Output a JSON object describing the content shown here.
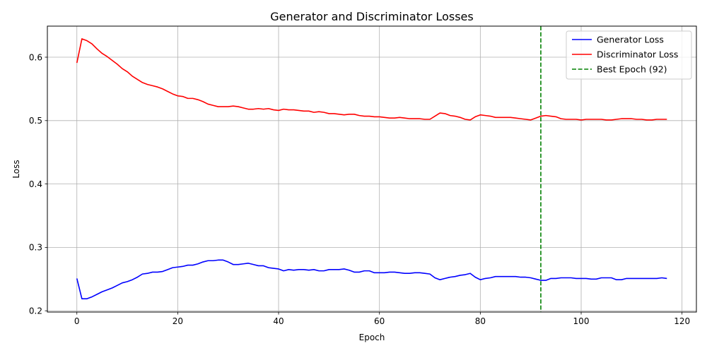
{
  "chart_data": {
    "type": "line",
    "title": "Generator and Discriminator Losses",
    "xlabel": "Epoch",
    "ylabel": "Loss",
    "xlim": [
      -5.85,
      122.85
    ],
    "ylim": [
      0.198,
      0.649
    ],
    "xticks": [
      0,
      20,
      40,
      60,
      80,
      100,
      120
    ],
    "yticks": [
      0.2,
      0.3,
      0.4,
      0.5,
      0.6
    ],
    "xtick_labels": [
      "0",
      "20",
      "40",
      "60",
      "80",
      "100",
      "120"
    ],
    "ytick_labels": [
      "0.2",
      "0.3",
      "0.4",
      "0.5",
      "0.6"
    ],
    "grid": true,
    "legend_position": "top-right",
    "series": [
      {
        "name": "Generator Loss",
        "color": "#0000ff",
        "style": "solid",
        "x_start": 0,
        "values": [
          0.251,
          0.219,
          0.219,
          0.222,
          0.226,
          0.23,
          0.233,
          0.236,
          0.24,
          0.244,
          0.246,
          0.249,
          0.253,
          0.258,
          0.259,
          0.261,
          0.261,
          0.262,
          0.265,
          0.268,
          0.269,
          0.27,
          0.272,
          0.272,
          0.274,
          0.277,
          0.279,
          0.279,
          0.28,
          0.28,
          0.277,
          0.273,
          0.273,
          0.274,
          0.275,
          0.273,
          0.271,
          0.271,
          0.268,
          0.267,
          0.266,
          0.263,
          0.265,
          0.264,
          0.265,
          0.265,
          0.264,
          0.265,
          0.263,
          0.263,
          0.265,
          0.265,
          0.265,
          0.266,
          0.264,
          0.261,
          0.261,
          0.263,
          0.263,
          0.26,
          0.26,
          0.26,
          0.261,
          0.261,
          0.26,
          0.259,
          0.259,
          0.26,
          0.26,
          0.259,
          0.258,
          0.252,
          0.249,
          0.251,
          0.253,
          0.254,
          0.256,
          0.257,
          0.259,
          0.253,
          0.249,
          0.251,
          0.252,
          0.254,
          0.254,
          0.254,
          0.254,
          0.254,
          0.253,
          0.253,
          0.252,
          0.25,
          0.248,
          0.248,
          0.251,
          0.251,
          0.252,
          0.252,
          0.252,
          0.251,
          0.251,
          0.251,
          0.25,
          0.25,
          0.252,
          0.252,
          0.252,
          0.249,
          0.249,
          0.251,
          0.251,
          0.251,
          0.251,
          0.251,
          0.251,
          0.251,
          0.252,
          0.251
        ]
      },
      {
        "name": "Discriminator Loss",
        "color": "#ff0000",
        "style": "solid",
        "x_start": 0,
        "values": [
          0.591,
          0.629,
          0.626,
          0.621,
          0.613,
          0.606,
          0.601,
          0.595,
          0.589,
          0.582,
          0.577,
          0.57,
          0.565,
          0.56,
          0.557,
          0.555,
          0.553,
          0.55,
          0.546,
          0.542,
          0.539,
          0.538,
          0.535,
          0.535,
          0.533,
          0.53,
          0.526,
          0.524,
          0.522,
          0.522,
          0.522,
          0.523,
          0.522,
          0.52,
          0.518,
          0.518,
          0.519,
          0.518,
          0.519,
          0.517,
          0.516,
          0.518,
          0.517,
          0.517,
          0.516,
          0.515,
          0.515,
          0.513,
          0.514,
          0.513,
          0.511,
          0.511,
          0.51,
          0.509,
          0.51,
          0.51,
          0.508,
          0.507,
          0.507,
          0.506,
          0.506,
          0.505,
          0.504,
          0.504,
          0.505,
          0.504,
          0.503,
          0.503,
          0.503,
          0.502,
          0.502,
          0.507,
          0.512,
          0.511,
          0.508,
          0.507,
          0.505,
          0.502,
          0.501,
          0.506,
          0.509,
          0.508,
          0.507,
          0.505,
          0.505,
          0.505,
          0.505,
          0.504,
          0.503,
          0.502,
          0.501,
          0.504,
          0.507,
          0.508,
          0.507,
          0.506,
          0.503,
          0.502,
          0.502,
          0.502,
          0.501,
          0.502,
          0.502,
          0.502,
          0.502,
          0.501,
          0.501,
          0.502,
          0.503,
          0.503,
          0.503,
          0.502,
          0.502,
          0.501,
          0.501,
          0.502,
          0.502,
          0.502
        ]
      },
      {
        "name": "Best Epoch (92)",
        "color": "#008000",
        "style": "dashed",
        "vline_x": 92
      }
    ]
  }
}
